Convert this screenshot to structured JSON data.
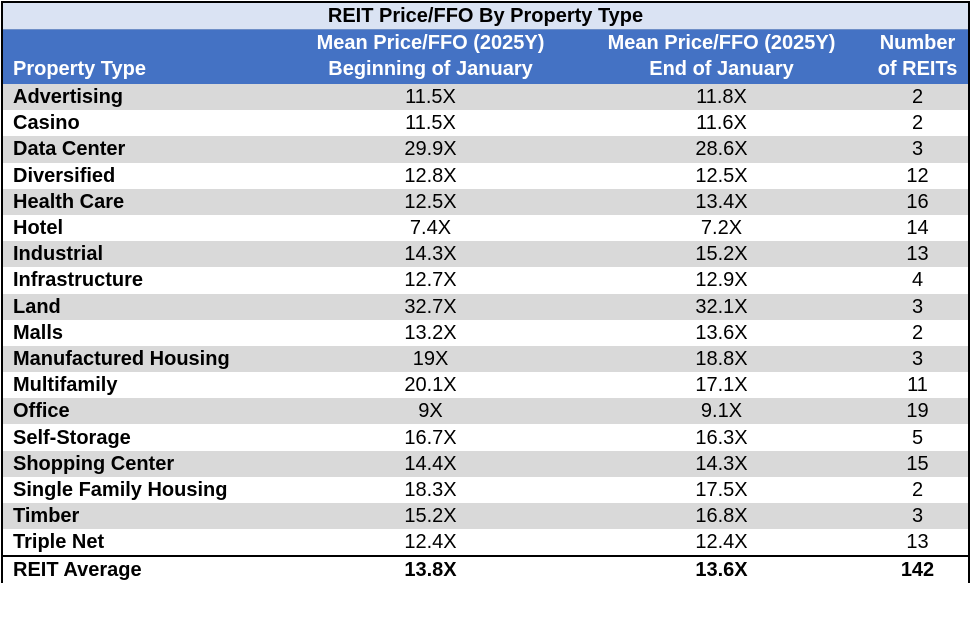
{
  "chart_data": {
    "type": "table",
    "title": "REIT Price/FFO By Property Type",
    "columns": [
      {
        "line1": "",
        "line2": "Property Type"
      },
      {
        "line1": "Mean Price/FFO (2025Y)",
        "line2": "Beginning of January"
      },
      {
        "line1": "Mean Price/FFO (2025Y)",
        "line2": "End of January"
      },
      {
        "line1": "Number",
        "line2": "of REITs"
      }
    ],
    "rows": [
      [
        "Advertising",
        "11.5X",
        "11.8X",
        "2"
      ],
      [
        "Casino",
        "11.5X",
        "11.6X",
        "2"
      ],
      [
        "Data Center",
        "29.9X",
        "28.6X",
        "3"
      ],
      [
        "Diversified",
        "12.8X",
        "12.5X",
        "12"
      ],
      [
        "Health Care",
        "12.5X",
        "13.4X",
        "16"
      ],
      [
        "Hotel",
        "7.4X",
        "7.2X",
        "14"
      ],
      [
        "Industrial",
        "14.3X",
        "15.2X",
        "13"
      ],
      [
        "Infrastructure",
        "12.7X",
        "12.9X",
        "4"
      ],
      [
        "Land",
        "32.7X",
        "32.1X",
        "3"
      ],
      [
        "Malls",
        "13.2X",
        "13.6X",
        "2"
      ],
      [
        "Manufactured Housing",
        "19X",
        "18.8X",
        "3"
      ],
      [
        "Multifamily",
        "20.1X",
        "17.1X",
        "11"
      ],
      [
        "Office",
        "9X",
        "9.1X",
        "19"
      ],
      [
        "Self-Storage",
        "16.7X",
        "16.3X",
        "5"
      ],
      [
        "Shopping Center",
        "14.4X",
        "14.3X",
        "15"
      ],
      [
        "Single Family Housing",
        "18.3X",
        "17.5X",
        "2"
      ],
      [
        "Timber",
        "15.2X",
        "16.8X",
        "3"
      ],
      [
        "Triple Net",
        "12.4X",
        "12.4X",
        "13"
      ]
    ],
    "total_row": [
      "REIT Average",
      "13.8X",
      "13.6X",
      "142"
    ]
  },
  "colors": {
    "title_bg": "#dae3f3",
    "header_bg": "#4472c4",
    "header_text": "#ffffff",
    "shaded_row": "#d9d9d9",
    "plain_row": "#ffffff"
  }
}
